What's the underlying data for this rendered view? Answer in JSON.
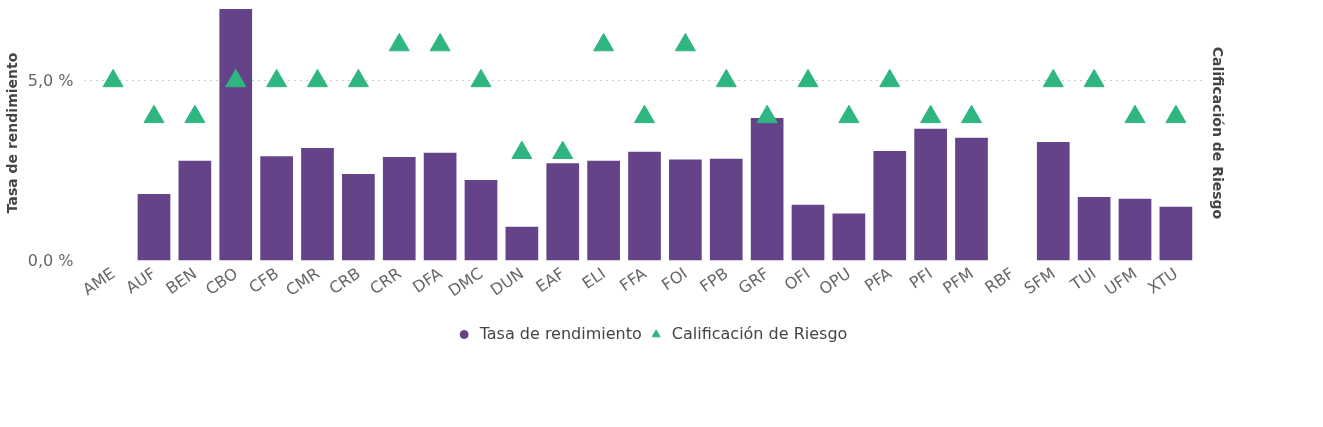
{
  "chart_data": {
    "type": "bar",
    "xlabel": null,
    "ylabel": "Tasa de rendimiento",
    "y2label": "Calificación de Riesgo",
    "categories": [
      "AME",
      "AUF",
      "BEN",
      "CBO",
      "CFB",
      "CMR",
      "CRB",
      "CRR",
      "DFA",
      "DMC",
      "DUN",
      "EAF",
      "ELI",
      "FFA",
      "FOI",
      "FPB",
      "GRF",
      "OFI",
      "OPU",
      "PFA",
      "PFI",
      "PFM",
      "RBF",
      "SFM",
      "TUI",
      "UFM",
      "XTU"
    ],
    "series": [
      {
        "name": "Tasa de rendimiento",
        "color": "#644388",
        "values": [
          null,
          1.85,
          2.78,
          7.0,
          2.9,
          3.13,
          2.41,
          2.88,
          3.0,
          2.24,
          0.94,
          2.71,
          2.78,
          3.03,
          2.81,
          2.83,
          3.97,
          1.55,
          1.31,
          3.05,
          3.67,
          3.42,
          null,
          3.3,
          1.77,
          1.72,
          1.5
        ]
      },
      {
        "name": "Calificación de Riesgo",
        "type": "scatter",
        "marker": "triangle",
        "color": "#2fb680",
        "values": [
          5,
          4,
          4,
          5,
          5,
          5,
          5,
          6,
          6,
          5,
          3,
          3,
          6,
          4,
          6,
          5,
          4,
          5,
          4,
          5,
          4,
          4,
          null,
          5,
          5,
          4,
          4
        ]
      }
    ],
    "ylim": [
      0,
      7.1
    ],
    "yticks": [
      {
        "value": 0,
        "label": "0,0 %"
      },
      {
        "value": 5,
        "label": "5,0 %"
      }
    ],
    "grid": "y",
    "legend": "bottom"
  }
}
